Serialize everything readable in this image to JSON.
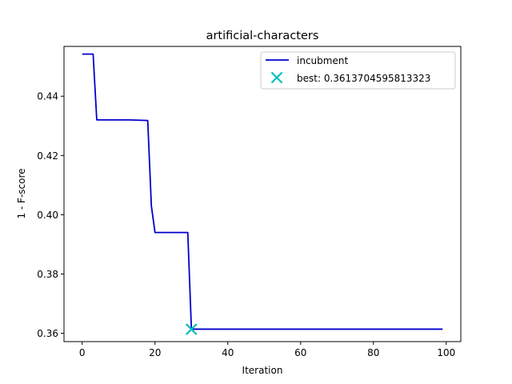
{
  "chart_data": {
    "type": "line",
    "title": "artificial-characters",
    "xlabel": "Iteration",
    "ylabel": "1 - F-score",
    "xlim": [
      -5,
      104
    ],
    "ylim": [
      0.3572,
      0.4568
    ],
    "xticks": [
      0,
      20,
      40,
      60,
      80,
      100
    ],
    "yticks": [
      0.36,
      0.38,
      0.4,
      0.42,
      0.44
    ],
    "ytick_labels": [
      "0.36",
      "0.38",
      "0.40",
      "0.42",
      "0.44"
    ],
    "grid": false,
    "legend_position": "top-right",
    "series": [
      {
        "name": "incubment",
        "color": "#0000cc",
        "x": [
          0,
          3,
          4,
          13,
          18,
          19,
          20,
          29,
          30,
          99
        ],
        "y": [
          0.4542,
          0.4542,
          0.432,
          0.432,
          0.4318,
          0.403,
          0.394,
          0.394,
          0.3614,
          0.3614
        ]
      }
    ],
    "best": {
      "label": "best: 0.3613704595813323",
      "color": "#00bfbf",
      "x": 30,
      "y": 0.3613704595813323
    }
  }
}
